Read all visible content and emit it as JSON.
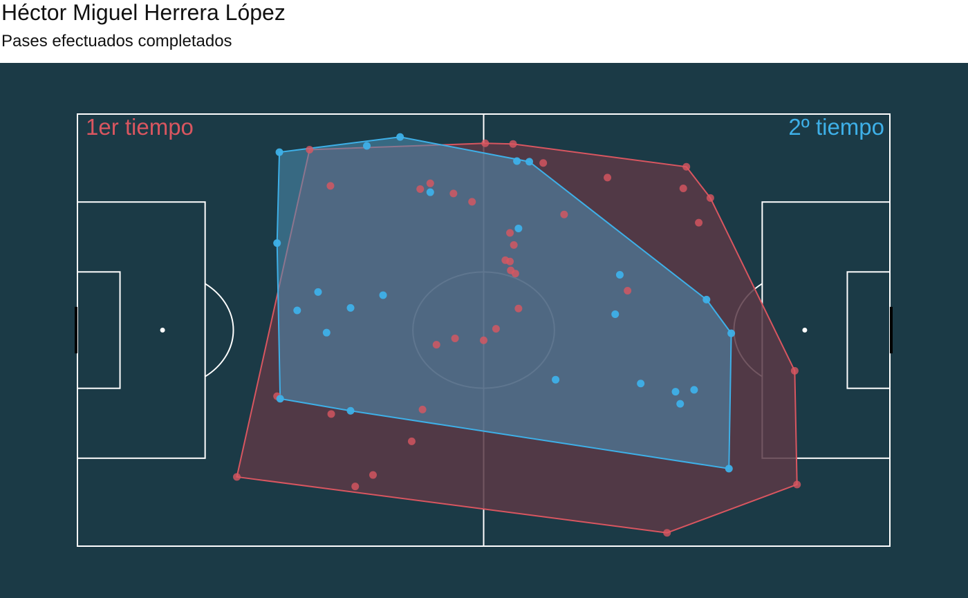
{
  "header": {
    "title": "Héctor Miguel Herrera López",
    "subtitle": "Pases efectuados completados"
  },
  "colors": {
    "background": "#1b3a46",
    "pitch_lines": "#ffffff",
    "first_half": "#d95660",
    "second_half": "#3eb0e8",
    "first_half_fill": "#5a3a47",
    "second_half_fill": "#4f8fb4"
  },
  "chart_data": {
    "type": "scatter",
    "title": "Héctor Miguel Herrera López",
    "subtitle": "Pases efectuados completados",
    "xlim": [
      0,
      105
    ],
    "ylim": [
      0,
      68
    ],
    "grid": false,
    "series": [
      {
        "name": "1er tiempo",
        "color": "#d95660",
        "hull": true,
        "points": [
          [
            20.6,
            10.9
          ],
          [
            35.9,
            9.4
          ],
          [
            76.2,
            2.1
          ],
          [
            93.0,
            9.7
          ],
          [
            92.7,
            27.6
          ],
          [
            80.3,
            50.9
          ],
          [
            81.8,
            54.8
          ],
          [
            78.7,
            59.7
          ],
          [
            56.3,
            63.3
          ],
          [
            52.7,
            63.4
          ],
          [
            30.0,
            62.4
          ],
          [
            25.8,
            23.6
          ],
          [
            32.8,
            20.8
          ],
          [
            44.6,
            21.5
          ],
          [
            43.2,
            16.5
          ],
          [
            38.2,
            11.2
          ],
          [
            54.1,
            34.2
          ],
          [
            48.8,
            32.7
          ],
          [
            52.5,
            32.4
          ],
          [
            46.4,
            31.7
          ],
          [
            57.0,
            37.4
          ],
          [
            56.0,
            43.4
          ],
          [
            56.6,
            42.9
          ],
          [
            55.3,
            45.0
          ],
          [
            55.9,
            44.8
          ],
          [
            56.4,
            47.4
          ],
          [
            55.9,
            49.3
          ],
          [
            32.7,
            56.7
          ],
          [
            44.3,
            56.2
          ],
          [
            45.6,
            57.1
          ],
          [
            48.6,
            55.5
          ],
          [
            51.0,
            54.2
          ],
          [
            60.2,
            60.3
          ],
          [
            68.5,
            58.0
          ],
          [
            78.3,
            56.3
          ],
          [
            71.1,
            40.2
          ],
          [
            62.9,
            52.2
          ]
        ]
      },
      {
        "name": "2º tiempo",
        "color": "#3eb0e8",
        "hull": true,
        "points": [
          [
            26.1,
            62.0
          ],
          [
            41.7,
            64.4
          ],
          [
            37.4,
            63.0
          ],
          [
            45.6,
            55.7
          ],
          [
            58.4,
            60.5
          ],
          [
            56.8,
            60.6
          ],
          [
            57.0,
            50.0
          ],
          [
            25.8,
            47.7
          ],
          [
            31.1,
            40.0
          ],
          [
            39.5,
            39.5
          ],
          [
            35.3,
            37.5
          ],
          [
            28.4,
            37.1
          ],
          [
            32.2,
            33.6
          ],
          [
            26.2,
            23.2
          ],
          [
            35.3,
            21.3
          ],
          [
            70.1,
            42.7
          ],
          [
            69.5,
            36.5
          ],
          [
            81.3,
            38.8
          ],
          [
            84.5,
            33.5
          ],
          [
            79.7,
            24.6
          ],
          [
            72.8,
            25.6
          ],
          [
            77.9,
            22.4
          ],
          [
            77.3,
            24.3
          ],
          [
            84.2,
            12.2
          ],
          [
            61.8,
            26.2
          ]
        ]
      }
    ]
  },
  "legend": {
    "first_half_label": "1er tiempo",
    "second_half_label": "2º tiempo"
  }
}
